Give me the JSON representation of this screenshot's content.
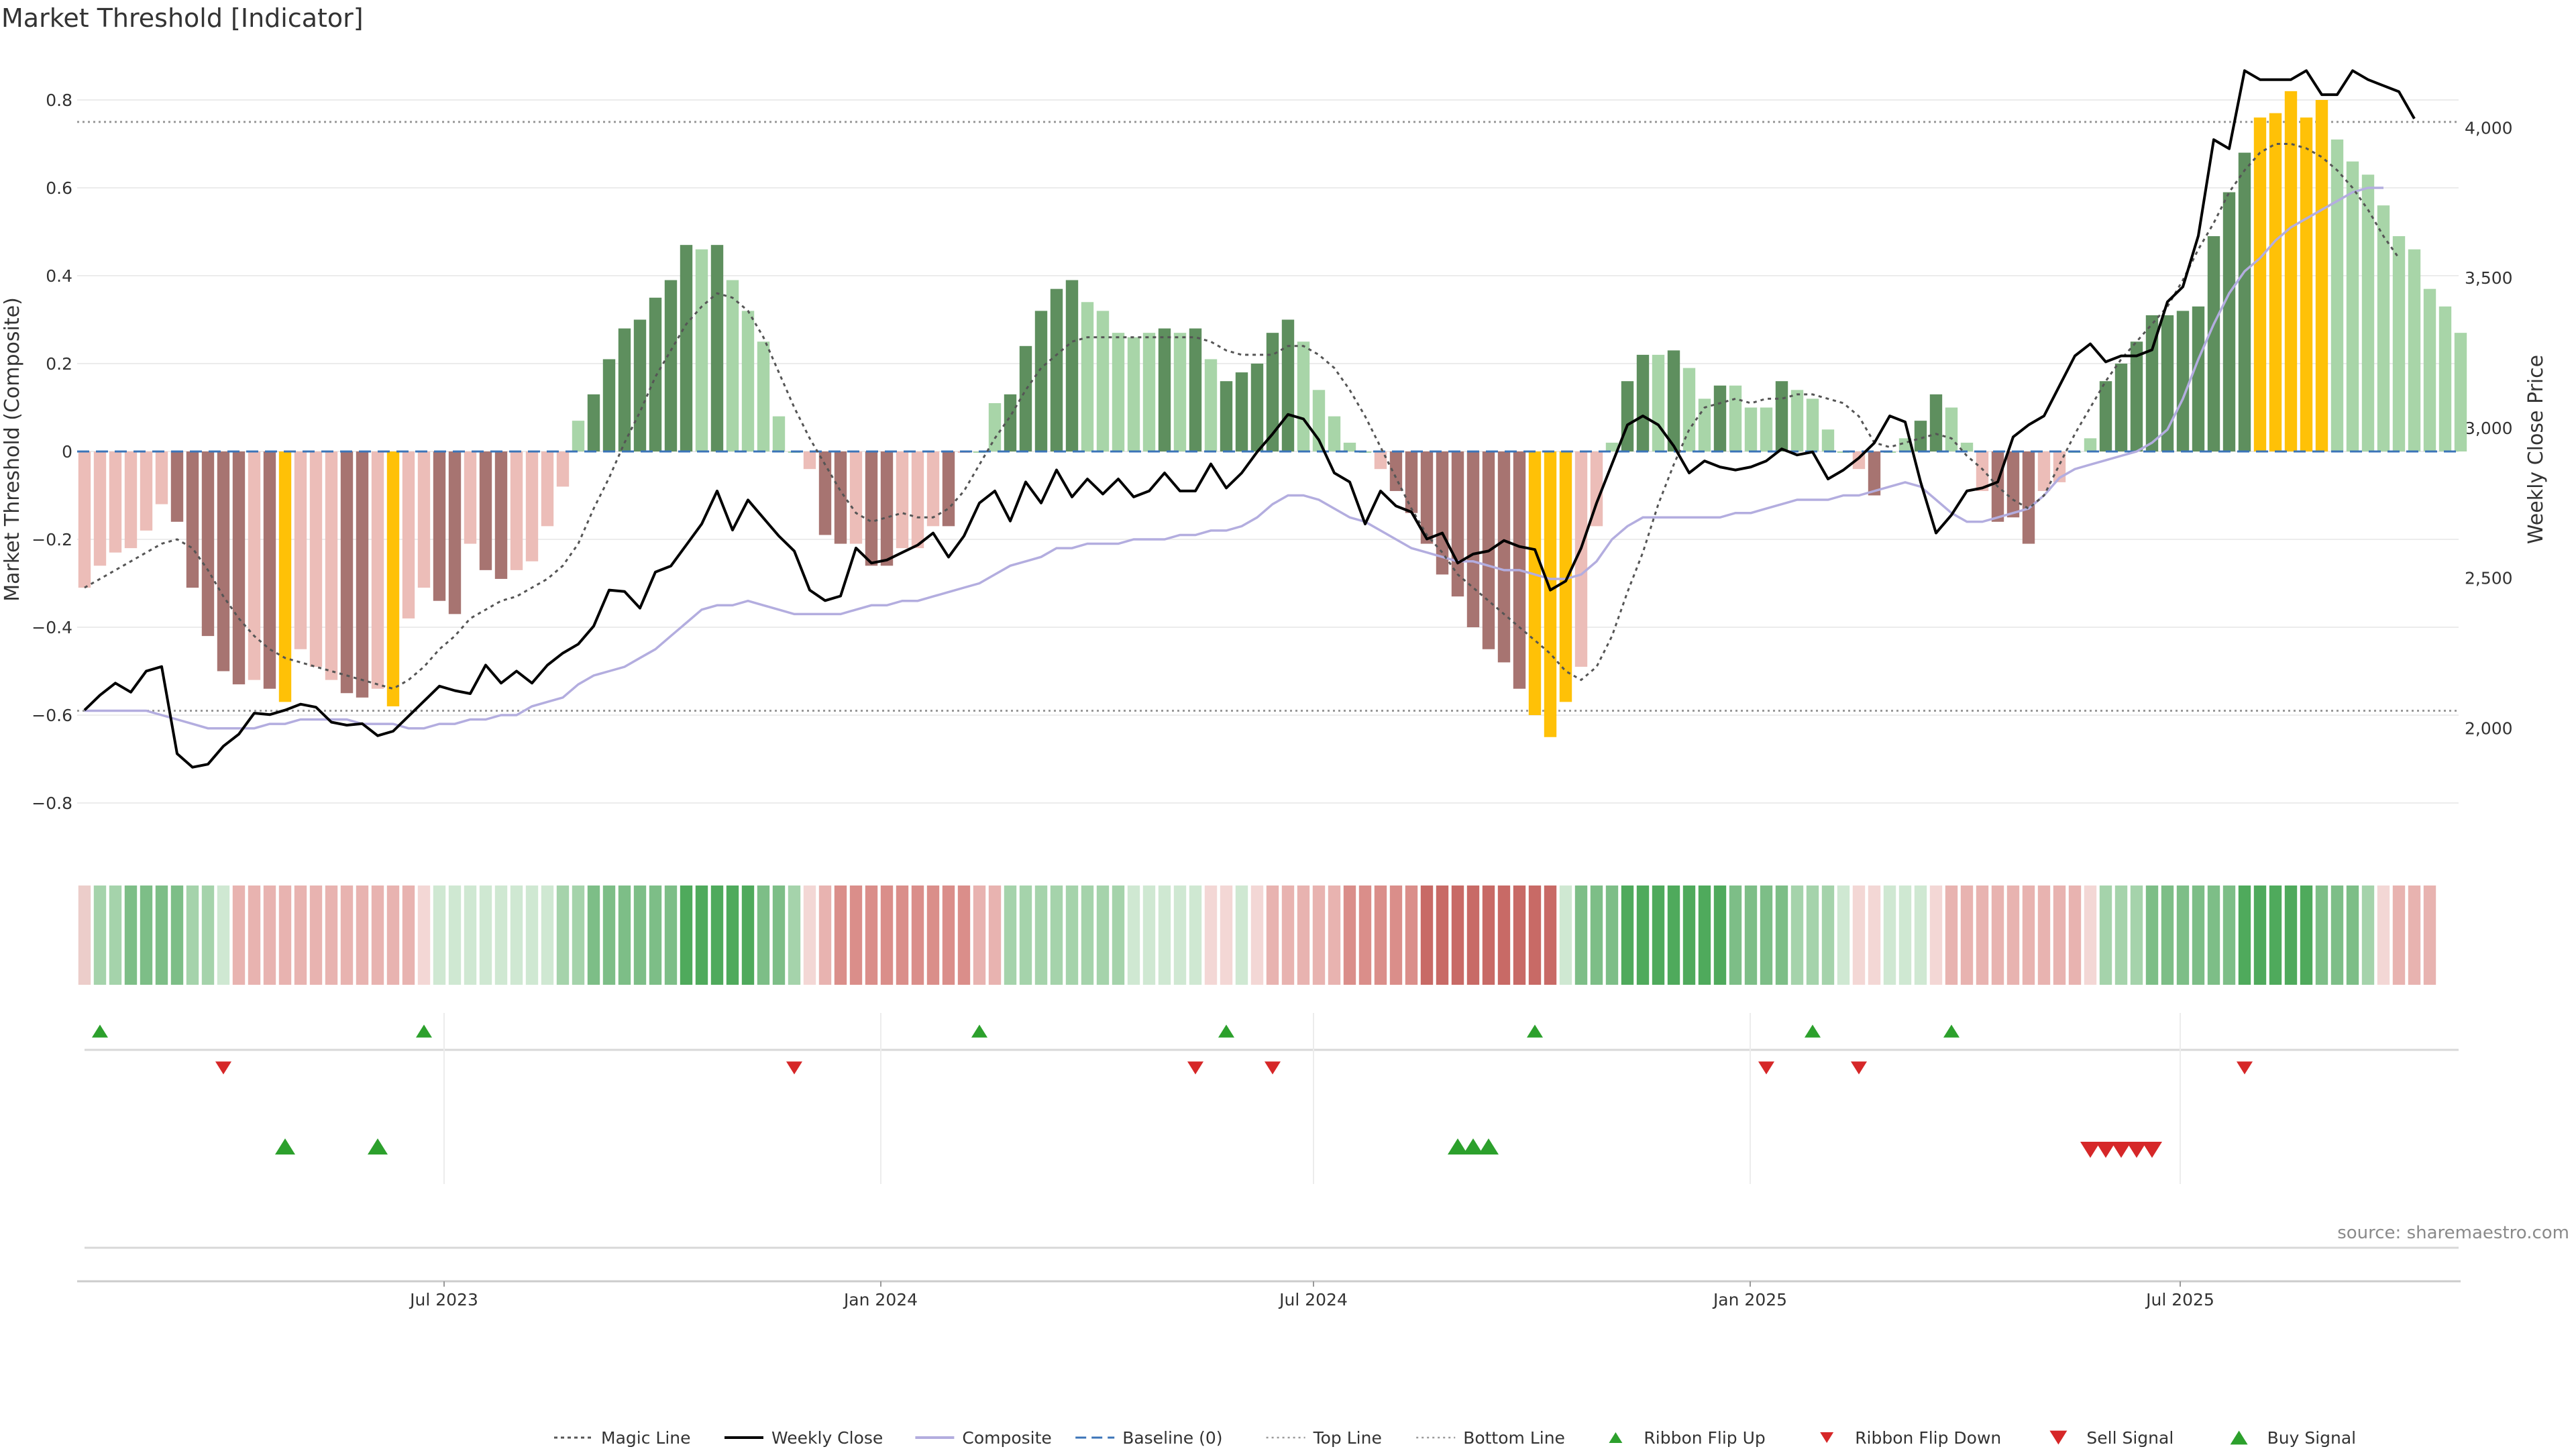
{
  "chart_data": {
    "type": "bar",
    "title": "Market Threshold [Indicator]",
    "ylabel": "Market Threshold (Composite)",
    "y2label": "Weekly Close Price",
    "ylim": [
      -0.9,
      0.9
    ],
    "y2lim": [
      1800,
      4280
    ],
    "yticks": [
      "0.8",
      "0.6",
      "0.4",
      "0.2",
      "0",
      "−0.2",
      "−0.4",
      "−0.6",
      "−0.8"
    ],
    "y2ticks": [
      "4,000",
      "3,500",
      "3,000",
      "2,500",
      "2,000"
    ],
    "xticks": [
      "Jul 2023",
      "Jan 2024",
      "Jul 2024",
      "Jan 2025",
      "Jul 2025"
    ],
    "reference_lines": {
      "top_line": 0.75,
      "bottom_line": -0.59,
      "baseline": 0
    },
    "colors": {
      "pos_strong": "#5e8f5e",
      "pos_weak": "#a8d5a8",
      "neg_strong": "#a77471",
      "neg_weak": "#ecbdb8",
      "extreme": "#ffc107",
      "weekly_close": "#000000",
      "composite": "#b3addf",
      "magic": "#555555",
      "baseline": "#3b74b8",
      "buy": "#2ca02c",
      "sell": "#d62728"
    },
    "composite_bars": [
      {
        "v": -0.31,
        "c": "neg_weak"
      },
      {
        "v": -0.26,
        "c": "neg_weak"
      },
      {
        "v": -0.23,
        "c": "neg_weak"
      },
      {
        "v": -0.22,
        "c": "neg_weak"
      },
      {
        "v": -0.18,
        "c": "neg_weak"
      },
      {
        "v": -0.12,
        "c": "neg_weak"
      },
      {
        "v": -0.16,
        "c": "neg_strong"
      },
      {
        "v": -0.31,
        "c": "neg_strong"
      },
      {
        "v": -0.42,
        "c": "neg_strong"
      },
      {
        "v": -0.5,
        "c": "neg_strong"
      },
      {
        "v": -0.53,
        "c": "neg_strong"
      },
      {
        "v": -0.52,
        "c": "neg_weak"
      },
      {
        "v": -0.54,
        "c": "neg_strong"
      },
      {
        "v": -0.57,
        "c": "extreme"
      },
      {
        "v": -0.45,
        "c": "neg_weak"
      },
      {
        "v": -0.49,
        "c": "neg_weak"
      },
      {
        "v": -0.52,
        "c": "neg_weak"
      },
      {
        "v": -0.55,
        "c": "neg_strong"
      },
      {
        "v": -0.56,
        "c": "neg_strong"
      },
      {
        "v": -0.54,
        "c": "neg_weak"
      },
      {
        "v": -0.58,
        "c": "extreme"
      },
      {
        "v": -0.38,
        "c": "neg_weak"
      },
      {
        "v": -0.31,
        "c": "neg_weak"
      },
      {
        "v": -0.34,
        "c": "neg_strong"
      },
      {
        "v": -0.37,
        "c": "neg_strong"
      },
      {
        "v": -0.21,
        "c": "neg_weak"
      },
      {
        "v": -0.27,
        "c": "neg_strong"
      },
      {
        "v": -0.29,
        "c": "neg_strong"
      },
      {
        "v": -0.27,
        "c": "neg_weak"
      },
      {
        "v": -0.25,
        "c": "neg_weak"
      },
      {
        "v": -0.17,
        "c": "neg_weak"
      },
      {
        "v": -0.08,
        "c": "neg_weak"
      },
      {
        "v": 0.07,
        "c": "pos_weak"
      },
      {
        "v": 0.13,
        "c": "pos_strong"
      },
      {
        "v": 0.21,
        "c": "pos_strong"
      },
      {
        "v": 0.28,
        "c": "pos_strong"
      },
      {
        "v": 0.3,
        "c": "pos_strong"
      },
      {
        "v": 0.35,
        "c": "pos_strong"
      },
      {
        "v": 0.39,
        "c": "pos_strong"
      },
      {
        "v": 0.47,
        "c": "pos_strong"
      },
      {
        "v": 0.46,
        "c": "pos_weak"
      },
      {
        "v": 0.47,
        "c": "pos_strong"
      },
      {
        "v": 0.39,
        "c": "pos_weak"
      },
      {
        "v": 0.32,
        "c": "pos_weak"
      },
      {
        "v": 0.25,
        "c": "pos_weak"
      },
      {
        "v": 0.08,
        "c": "pos_weak"
      },
      {
        "v": 0.0,
        "c": "pos_weak"
      },
      {
        "v": -0.04,
        "c": "neg_weak"
      },
      {
        "v": -0.19,
        "c": "neg_strong"
      },
      {
        "v": -0.21,
        "c": "neg_strong"
      },
      {
        "v": -0.21,
        "c": "neg_weak"
      },
      {
        "v": -0.26,
        "c": "neg_strong"
      },
      {
        "v": -0.26,
        "c": "neg_strong"
      },
      {
        "v": -0.22,
        "c": "neg_weak"
      },
      {
        "v": -0.22,
        "c": "neg_weak"
      },
      {
        "v": -0.17,
        "c": "neg_weak"
      },
      {
        "v": -0.17,
        "c": "neg_strong"
      },
      {
        "v": 0.0,
        "c": "neg_weak"
      },
      {
        "v": 0.0,
        "c": "pos_weak"
      },
      {
        "v": 0.11,
        "c": "pos_weak"
      },
      {
        "v": 0.13,
        "c": "pos_strong"
      },
      {
        "v": 0.24,
        "c": "pos_strong"
      },
      {
        "v": 0.32,
        "c": "pos_strong"
      },
      {
        "v": 0.37,
        "c": "pos_strong"
      },
      {
        "v": 0.39,
        "c": "pos_strong"
      },
      {
        "v": 0.34,
        "c": "pos_weak"
      },
      {
        "v": 0.32,
        "c": "pos_weak"
      },
      {
        "v": 0.27,
        "c": "pos_weak"
      },
      {
        "v": 0.26,
        "c": "pos_weak"
      },
      {
        "v": 0.27,
        "c": "pos_weak"
      },
      {
        "v": 0.28,
        "c": "pos_strong"
      },
      {
        "v": 0.27,
        "c": "pos_weak"
      },
      {
        "v": 0.28,
        "c": "pos_strong"
      },
      {
        "v": 0.21,
        "c": "pos_weak"
      },
      {
        "v": 0.16,
        "c": "pos_strong"
      },
      {
        "v": 0.18,
        "c": "pos_strong"
      },
      {
        "v": 0.2,
        "c": "pos_strong"
      },
      {
        "v": 0.27,
        "c": "pos_strong"
      },
      {
        "v": 0.3,
        "c": "pos_strong"
      },
      {
        "v": 0.25,
        "c": "pos_weak"
      },
      {
        "v": 0.14,
        "c": "pos_weak"
      },
      {
        "v": 0.08,
        "c": "pos_weak"
      },
      {
        "v": 0.02,
        "c": "pos_weak"
      },
      {
        "v": 0.0,
        "c": "pos_weak"
      },
      {
        "v": -0.04,
        "c": "neg_weak"
      },
      {
        "v": -0.09,
        "c": "neg_strong"
      },
      {
        "v": -0.14,
        "c": "neg_strong"
      },
      {
        "v": -0.21,
        "c": "neg_strong"
      },
      {
        "v": -0.28,
        "c": "neg_strong"
      },
      {
        "v": -0.33,
        "c": "neg_strong"
      },
      {
        "v": -0.4,
        "c": "neg_strong"
      },
      {
        "v": -0.45,
        "c": "neg_strong"
      },
      {
        "v": -0.48,
        "c": "neg_strong"
      },
      {
        "v": -0.54,
        "c": "neg_strong"
      },
      {
        "v": -0.6,
        "c": "extreme"
      },
      {
        "v": -0.65,
        "c": "extreme"
      },
      {
        "v": -0.57,
        "c": "extreme"
      },
      {
        "v": -0.49,
        "c": "neg_weak"
      },
      {
        "v": -0.17,
        "c": "neg_weak"
      },
      {
        "v": 0.02,
        "c": "pos_weak"
      },
      {
        "v": 0.16,
        "c": "pos_strong"
      },
      {
        "v": 0.22,
        "c": "pos_strong"
      },
      {
        "v": 0.22,
        "c": "pos_weak"
      },
      {
        "v": 0.23,
        "c": "pos_strong"
      },
      {
        "v": 0.19,
        "c": "pos_weak"
      },
      {
        "v": 0.12,
        "c": "pos_weak"
      },
      {
        "v": 0.15,
        "c": "pos_strong"
      },
      {
        "v": 0.15,
        "c": "pos_weak"
      },
      {
        "v": 0.1,
        "c": "pos_weak"
      },
      {
        "v": 0.1,
        "c": "pos_weak"
      },
      {
        "v": 0.16,
        "c": "pos_strong"
      },
      {
        "v": 0.14,
        "c": "pos_weak"
      },
      {
        "v": 0.12,
        "c": "pos_weak"
      },
      {
        "v": 0.05,
        "c": "pos_weak"
      },
      {
        "v": 0.0,
        "c": "pos_weak"
      },
      {
        "v": -0.04,
        "c": "neg_weak"
      },
      {
        "v": -0.1,
        "c": "neg_strong"
      },
      {
        "v": 0.0,
        "c": "pos_weak"
      },
      {
        "v": 0.03,
        "c": "pos_weak"
      },
      {
        "v": 0.07,
        "c": "pos_strong"
      },
      {
        "v": 0.13,
        "c": "pos_strong"
      },
      {
        "v": 0.1,
        "c": "pos_weak"
      },
      {
        "v": 0.02,
        "c": "pos_weak"
      },
      {
        "v": -0.09,
        "c": "neg_weak"
      },
      {
        "v": -0.16,
        "c": "neg_strong"
      },
      {
        "v": -0.15,
        "c": "neg_strong"
      },
      {
        "v": -0.21,
        "c": "neg_strong"
      },
      {
        "v": -0.09,
        "c": "neg_weak"
      },
      {
        "v": -0.07,
        "c": "neg_weak"
      },
      {
        "v": 0.0,
        "c": "pos_weak"
      },
      {
        "v": 0.03,
        "c": "pos_weak"
      },
      {
        "v": 0.16,
        "c": "pos_strong"
      },
      {
        "v": 0.2,
        "c": "pos_strong"
      },
      {
        "v": 0.25,
        "c": "pos_strong"
      },
      {
        "v": 0.31,
        "c": "pos_strong"
      },
      {
        "v": 0.31,
        "c": "pos_strong"
      },
      {
        "v": 0.32,
        "c": "pos_strong"
      },
      {
        "v": 0.33,
        "c": "pos_strong"
      },
      {
        "v": 0.49,
        "c": "pos_strong"
      },
      {
        "v": 0.59,
        "c": "pos_strong"
      },
      {
        "v": 0.68,
        "c": "pos_strong"
      },
      {
        "v": 0.76,
        "c": "extreme"
      },
      {
        "v": 0.77,
        "c": "extreme"
      },
      {
        "v": 0.82,
        "c": "extreme"
      },
      {
        "v": 0.76,
        "c": "extreme"
      },
      {
        "v": 0.8,
        "c": "extreme"
      },
      {
        "v": 0.71,
        "c": "pos_weak"
      },
      {
        "v": 0.66,
        "c": "pos_weak"
      },
      {
        "v": 0.63,
        "c": "pos_weak"
      },
      {
        "v": 0.56,
        "c": "pos_weak"
      },
      {
        "v": 0.49,
        "c": "pos_weak"
      },
      {
        "v": 0.46,
        "c": "pos_weak"
      },
      {
        "v": 0.37,
        "c": "pos_weak"
      },
      {
        "v": 0.33,
        "c": "pos_weak"
      },
      {
        "v": 0.27,
        "c": "pos_weak"
      }
    ],
    "magic_line": [
      -0.31,
      -0.29,
      -0.27,
      -0.25,
      -0.23,
      -0.21,
      -0.2,
      -0.22,
      -0.27,
      -0.33,
      -0.38,
      -0.42,
      -0.45,
      -0.47,
      -0.48,
      -0.49,
      -0.5,
      -0.51,
      -0.52,
      -0.53,
      -0.54,
      -0.52,
      -0.49,
      -0.45,
      -0.42,
      -0.38,
      -0.36,
      -0.34,
      -0.33,
      -0.31,
      -0.29,
      -0.26,
      -0.21,
      -0.13,
      -0.06,
      0.02,
      0.09,
      0.17,
      0.23,
      0.29,
      0.33,
      0.36,
      0.35,
      0.32,
      0.26,
      0.18,
      0.1,
      0.03,
      -0.03,
      -0.09,
      -0.14,
      -0.16,
      -0.15,
      -0.14,
      -0.15,
      -0.15,
      -0.13,
      -0.09,
      -0.03,
      0.03,
      0.08,
      0.14,
      0.19,
      0.22,
      0.25,
      0.26,
      0.26,
      0.26,
      0.26,
      0.26,
      0.26,
      0.26,
      0.26,
      0.25,
      0.23,
      0.22,
      0.22,
      0.22,
      0.24,
      0.24,
      0.22,
      0.19,
      0.14,
      0.08,
      0.01,
      -0.06,
      -0.13,
      -0.19,
      -0.23,
      -0.28,
      -0.31,
      -0.34,
      -0.37,
      -0.4,
      -0.43,
      -0.46,
      -0.5,
      -0.52,
      -0.49,
      -0.42,
      -0.32,
      -0.23,
      -0.12,
      -0.03,
      0.05,
      0.1,
      0.11,
      0.12,
      0.11,
      0.12,
      0.12,
      0.13,
      0.13,
      0.12,
      0.11,
      0.08,
      0.02,
      0.01,
      0.02,
      0.03,
      0.04,
      0.03,
      -0.01,
      -0.04,
      -0.08,
      -0.11,
      -0.13,
      -0.1,
      -0.03,
      0.04,
      0.1,
      0.16,
      0.21,
      0.25,
      0.29,
      0.33,
      0.39,
      0.46,
      0.52,
      0.59,
      0.64,
      0.68,
      0.7,
      0.7,
      0.69,
      0.67,
      0.64,
      0.6,
      0.55,
      0.49,
      0.44
    ],
    "composite_line": [
      -0.59,
      -0.59,
      -0.59,
      -0.59,
      -0.59,
      -0.6,
      -0.61,
      -0.62,
      -0.63,
      -0.63,
      -0.63,
      -0.63,
      -0.62,
      -0.62,
      -0.61,
      -0.61,
      -0.61,
      -0.61,
      -0.62,
      -0.62,
      -0.62,
      -0.63,
      -0.63,
      -0.62,
      -0.62,
      -0.61,
      -0.61,
      -0.6,
      -0.6,
      -0.58,
      -0.57,
      -0.56,
      -0.53,
      -0.51,
      -0.5,
      -0.49,
      -0.47,
      -0.45,
      -0.42,
      -0.39,
      -0.36,
      -0.35,
      -0.35,
      -0.34,
      -0.35,
      -0.36,
      -0.37,
      -0.37,
      -0.37,
      -0.37,
      -0.36,
      -0.35,
      -0.35,
      -0.34,
      -0.34,
      -0.33,
      -0.32,
      -0.31,
      -0.3,
      -0.28,
      -0.26,
      -0.25,
      -0.24,
      -0.22,
      -0.22,
      -0.21,
      -0.21,
      -0.21,
      -0.2,
      -0.2,
      -0.2,
      -0.19,
      -0.19,
      -0.18,
      -0.18,
      -0.17,
      -0.15,
      -0.12,
      -0.1,
      -0.1,
      -0.11,
      -0.13,
      -0.15,
      -0.16,
      -0.18,
      -0.2,
      -0.22,
      -0.23,
      -0.24,
      -0.25,
      -0.25,
      -0.26,
      -0.27,
      -0.27,
      -0.28,
      -0.29,
      -0.29,
      -0.28,
      -0.25,
      -0.2,
      -0.17,
      -0.15,
      -0.15,
      -0.15,
      -0.15,
      -0.15,
      -0.15,
      -0.14,
      -0.14,
      -0.13,
      -0.12,
      -0.11,
      -0.11,
      -0.11,
      -0.1,
      -0.1,
      -0.09,
      -0.08,
      -0.07,
      -0.08,
      -0.11,
      -0.14,
      -0.16,
      -0.16,
      -0.15,
      -0.14,
      -0.13,
      -0.1,
      -0.06,
      -0.04,
      -0.03,
      -0.02,
      -0.01,
      0.0,
      0.02,
      0.05,
      0.12,
      0.21,
      0.29,
      0.36,
      0.41,
      0.44,
      0.48,
      0.51,
      0.53,
      0.55,
      0.57,
      0.59,
      0.6,
      0.6
    ],
    "weekly_close": [
      2060,
      2110,
      2150,
      2120,
      2190,
      2205,
      1915,
      1870,
      1880,
      1940,
      1980,
      2050,
      2045,
      2060,
      2080,
      2070,
      2020,
      2010,
      2015,
      1975,
      1990,
      2040,
      2090,
      2140,
      2125,
      2115,
      2210,
      2150,
      2190,
      2150,
      2210,
      2250,
      2280,
      2340,
      2460,
      2455,
      2400,
      2520,
      2540,
      2610,
      2680,
      2790,
      2660,
      2760,
      2700,
      2640,
      2590,
      2460,
      2425,
      2440,
      2600,
      2550,
      2560,
      2585,
      2610,
      2650,
      2570,
      2640,
      2750,
      2790,
      2690,
      2820,
      2750,
      2860,
      2770,
      2830,
      2780,
      2830,
      2770,
      2790,
      2850,
      2790,
      2790,
      2880,
      2800,
      2850,
      2920,
      2980,
      3045,
      3030,
      2960,
      2850,
      2820,
      2680,
      2790,
      2740,
      2720,
      2630,
      2650,
      2550,
      2580,
      2590,
      2625,
      2605,
      2595,
      2460,
      2490,
      2600,
      2750,
      2880,
      3010,
      3040,
      3010,
      2940,
      2850,
      2890,
      2870,
      2860,
      2870,
      2890,
      2930,
      2910,
      2920,
      2830,
      2860,
      2900,
      2950,
      3040,
      3020,
      2820,
      2650,
      2710,
      2790,
      2800,
      2820,
      2970,
      3010,
      3040,
      3140,
      3240,
      3280,
      3220,
      3240,
      3240,
      3260,
      3420,
      3470,
      3640,
      3960,
      3930,
      4190,
      4160,
      4160,
      4160,
      4190,
      4110,
      4110,
      4190,
      4160,
      4140,
      4120,
      4030
    ],
    "ribbon": [
      "neg_weak",
      "pos_1",
      "pos_1",
      "pos_2",
      "pos_2",
      "pos_2",
      "pos_2",
      "pos_1",
      "pos_1",
      "pos_0",
      "neg_1",
      "neg_1",
      "neg_1",
      "neg_1",
      "neg_1",
      "neg_1",
      "neg_1",
      "neg_1",
      "neg_1",
      "neg_1",
      "neg_1",
      "neg_1",
      "neg_0",
      "pos_0",
      "pos_0",
      "pos_0",
      "pos_0",
      "pos_0",
      "pos_0",
      "pos_0",
      "pos_0",
      "pos_1",
      "pos_1",
      "pos_2",
      "pos_2",
      "pos_2",
      "pos_2",
      "pos_2",
      "pos_2",
      "pos_3",
      "pos_3",
      "pos_3",
      "pos_3",
      "pos_3",
      "pos_2",
      "pos_2",
      "pos_1",
      "neg_0",
      "neg_1",
      "neg_2",
      "neg_2",
      "neg_2",
      "neg_2",
      "neg_2",
      "neg_2",
      "neg_2",
      "neg_2",
      "neg_2",
      "neg_1",
      "neg_1",
      "pos_1",
      "pos_1",
      "pos_1",
      "pos_1",
      "pos_1",
      "pos_1",
      "pos_1",
      "pos_1",
      "pos_0",
      "pos_0",
      "pos_0",
      "pos_0",
      "pos_0",
      "neg_0",
      "neg_0",
      "pos_0",
      "neg_0",
      "neg_1",
      "neg_1",
      "neg_1",
      "neg_1",
      "neg_1",
      "neg_2",
      "neg_2",
      "neg_2",
      "neg_2",
      "neg_2",
      "neg_3",
      "neg_3",
      "neg_3",
      "neg_3",
      "neg_3",
      "neg_3",
      "neg_3",
      "neg_3",
      "neg_3",
      "pos_0",
      "pos_2",
      "pos_2",
      "pos_2",
      "pos_3",
      "pos_3",
      "pos_3",
      "pos_3",
      "pos_3",
      "pos_3",
      "pos_3",
      "pos_2",
      "pos_2",
      "pos_2",
      "pos_2",
      "pos_1",
      "pos_1",
      "pos_1",
      "pos_0",
      "neg_0",
      "neg_0",
      "pos_0",
      "pos_0",
      "pos_0",
      "neg_0",
      "neg_1",
      "neg_1",
      "neg_1",
      "neg_1",
      "neg_1",
      "neg_1",
      "neg_1",
      "neg_1",
      "neg_1",
      "neg_0",
      "pos_1",
      "pos_1",
      "pos_1",
      "pos_2",
      "pos_2",
      "pos_2",
      "pos_2",
      "pos_2",
      "pos_2",
      "pos_3",
      "pos_3",
      "pos_3",
      "pos_3",
      "pos_3",
      "pos_2",
      "pos_2",
      "pos_2",
      "pos_1",
      "neg_0",
      "neg_1",
      "neg_1",
      "neg_1"
    ],
    "ribbon_flip_up": [
      1,
      22,
      58,
      74,
      94,
      112,
      121
    ],
    "ribbon_flip_down": [
      9,
      46,
      72,
      77,
      109,
      115,
      140
    ],
    "buy_signal": [
      13,
      19,
      89,
      90,
      91
    ],
    "sell_signal": [
      130,
      131,
      132,
      133,
      134
    ],
    "source_text": "source: sharemaestro.com",
    "legend": [
      {
        "label": "Magic Line",
        "symbol": "dotted"
      },
      {
        "label": "Weekly Close",
        "symbol": "solid"
      },
      {
        "label": "Composite",
        "symbol": "composite"
      },
      {
        "label": "Baseline (0)",
        "symbol": "dashed"
      },
      {
        "label": "Top Line",
        "symbol": "thin-dotted"
      },
      {
        "label": "Bottom Line",
        "symbol": "thin-dotted"
      },
      {
        "label": "Ribbon Flip Up",
        "symbol": "tri-up-small"
      },
      {
        "label": "Ribbon Flip Down",
        "symbol": "tri-down-small"
      },
      {
        "label": "Sell Signal",
        "symbol": "tri-down"
      },
      {
        "label": "Buy Signal",
        "symbol": "tri-up"
      }
    ]
  }
}
